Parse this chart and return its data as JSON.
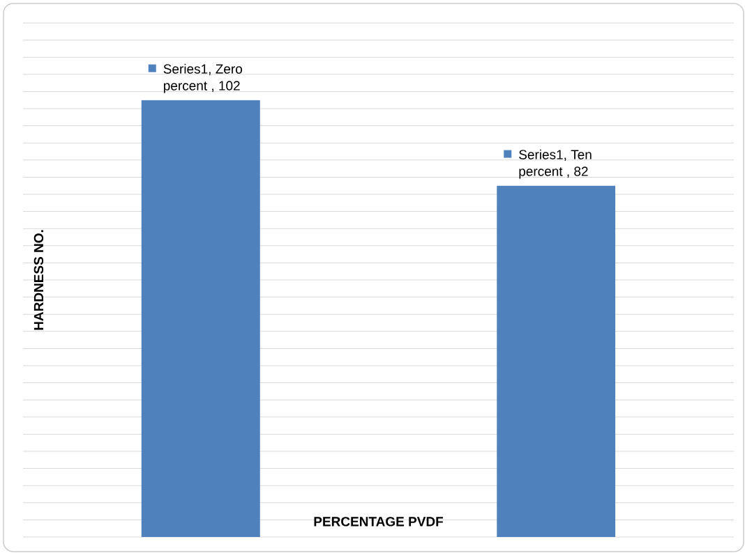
{
  "chart_data": {
    "type": "bar",
    "xlabel": "PERCENTAGE PVDF",
    "ylabel": "HARDNESS NO.",
    "categories": [
      null,
      null
    ],
    "values": [
      102,
      82
    ],
    "value_labels": [
      "Series1, Zero percent , 102",
      "Series1, Ten percent , 82"
    ],
    "color": "#4f81bd",
    "ylim": [
      0,
      120
    ],
    "yticks": [
      {
        "value": 0,
        "label": null
      },
      {
        "value": 4,
        "label": null
      },
      {
        "value": 8,
        "label": null
      },
      {
        "value": 12,
        "label": null
      },
      {
        "value": 16,
        "label": null
      },
      {
        "value": 20,
        "label": null
      },
      {
        "value": 24,
        "label": null
      },
      {
        "value": 28,
        "label": null
      },
      {
        "value": 32,
        "label": null
      },
      {
        "value": 36,
        "label": null
      },
      {
        "value": 40,
        "label": null
      },
      {
        "value": 44,
        "label": null
      },
      {
        "value": 48,
        "label": null
      },
      {
        "value": 52,
        "label": null
      },
      {
        "value": 56,
        "label": null
      },
      {
        "value": 60,
        "label": null
      },
      {
        "value": 64,
        "label": null
      },
      {
        "value": 68,
        "label": null
      },
      {
        "value": 72,
        "label": null
      },
      {
        "value": 76,
        "label": null
      },
      {
        "value": 80,
        "label": null
      },
      {
        "value": 84,
        "label": null
      },
      {
        "value": 88,
        "label": null
      },
      {
        "value": 92,
        "label": null
      },
      {
        "value": 96,
        "label": null
      },
      {
        "value": 100,
        "label": null
      },
      {
        "value": 104,
        "label": null
      },
      {
        "value": 108,
        "label": null
      },
      {
        "value": 112,
        "label": null
      },
      {
        "value": 116,
        "label": null
      },
      {
        "value": 120,
        "label": null
      }
    ],
    "grid": "y"
  }
}
